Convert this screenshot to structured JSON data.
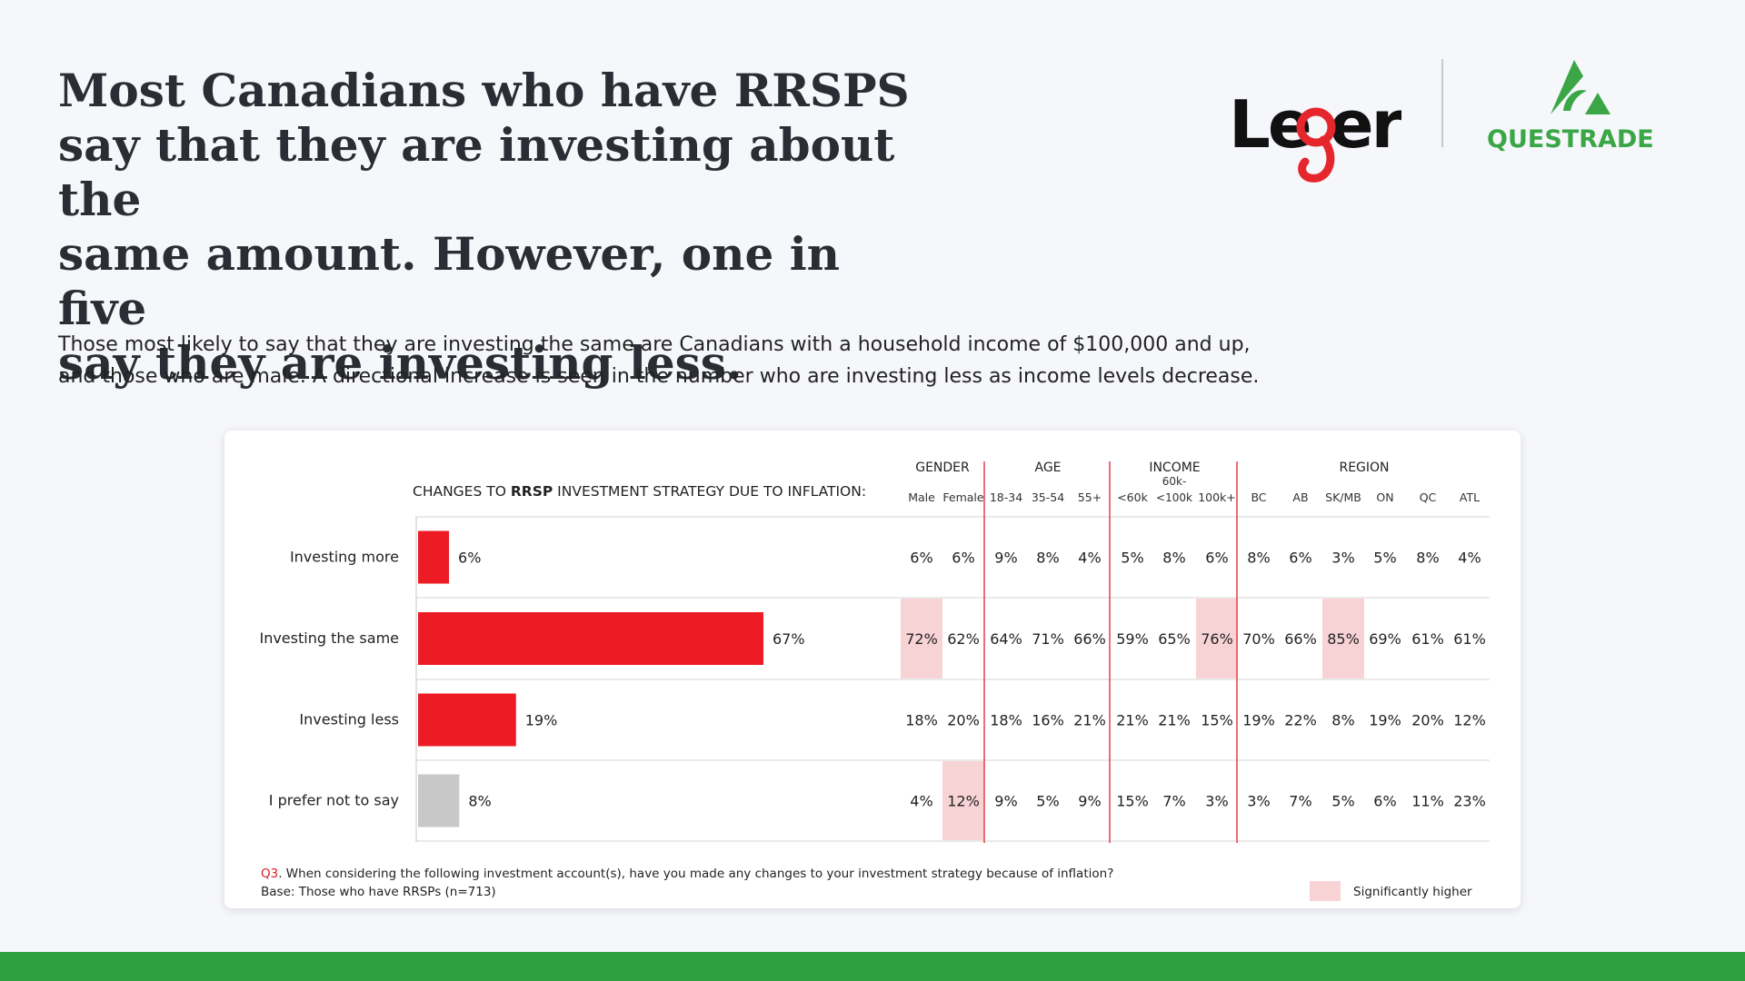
{
  "headline": {
    "lines": [
      "Most Canadians who have RRSPS",
      "say that they are investing about the",
      "same amount. However, one in five",
      "say they are investing less."
    ]
  },
  "subtext": {
    "line1": "Those most likely to say that they are investing the same are Canadians with a household income of $100,000 and up,",
    "line2": "and those who are male. A directional increase is seen in the number who are investing less as income levels decrease."
  },
  "logos": {
    "leger": {
      "name": "Leger",
      "text": "Le er"
    },
    "questrade": {
      "name": "Questrade",
      "text": "QUESTRADE"
    }
  },
  "colors": {
    "bar_red": "#ed1c24",
    "bar_gray": "#c8c8c8",
    "highlight": "#f8d3d6",
    "divider_red": "#e84a50",
    "brand_green": "#2e9f3c"
  },
  "chart_data": {
    "type": "bar",
    "title_prefix": "CHANGES TO ",
    "title_bold": "RRSP",
    "title_suffix": " INVESTMENT STRATEGY DUE TO INFLATION:",
    "categories": [
      "Investing more",
      "Investing the same",
      "Investing less",
      "I prefer not to say"
    ],
    "values": [
      6,
      67,
      19,
      8
    ],
    "value_labels": [
      "6%",
      "67%",
      "19%",
      "8%"
    ],
    "bar_colors": [
      "#ed1c24",
      "#ed1c24",
      "#ed1c24",
      "#c8c8c8"
    ],
    "xlim": [
      0,
      100
    ],
    "groups": [
      {
        "label": "GENDER",
        "columns": [
          "Male",
          "Female"
        ]
      },
      {
        "label": "AGE",
        "columns": [
          "18-34",
          "35-54",
          "55+"
        ]
      },
      {
        "label": "INCOME",
        "columns": [
          "<60k",
          "60k-<100k",
          "100k+"
        ]
      },
      {
        "label": "REGION",
        "columns": [
          "BC",
          "AB",
          "SK/MB",
          "ON",
          "QC",
          "ATL"
        ]
      }
    ],
    "table": [
      [
        "6%",
        "6%",
        "9%",
        "8%",
        "4%",
        "5%",
        "8%",
        "6%",
        "8%",
        "6%",
        "3%",
        "5%",
        "8%",
        "4%"
      ],
      [
        "72%",
        "62%",
        "64%",
        "71%",
        "66%",
        "59%",
        "65%",
        "76%",
        "70%",
        "66%",
        "85%",
        "69%",
        "61%",
        "61%"
      ],
      [
        "18%",
        "20%",
        "18%",
        "16%",
        "21%",
        "21%",
        "21%",
        "15%",
        "19%",
        "22%",
        "8%",
        "19%",
        "20%",
        "12%"
      ],
      [
        "4%",
        "12%",
        "9%",
        "5%",
        "9%",
        "15%",
        "7%",
        "3%",
        "3%",
        "7%",
        "5%",
        "6%",
        "11%",
        "23%"
      ]
    ],
    "highlights": [
      [
        1,
        0
      ],
      [
        1,
        7
      ],
      [
        1,
        10
      ],
      [
        3,
        1
      ]
    ],
    "legend_label": "Significantly higher"
  },
  "footnote": {
    "q_label": "Q3",
    "question": ". When considering the following investment account(s), have you made any changes to your investment strategy because of inflation?",
    "base": "Base: Those who have RRSPs (n=713)"
  }
}
